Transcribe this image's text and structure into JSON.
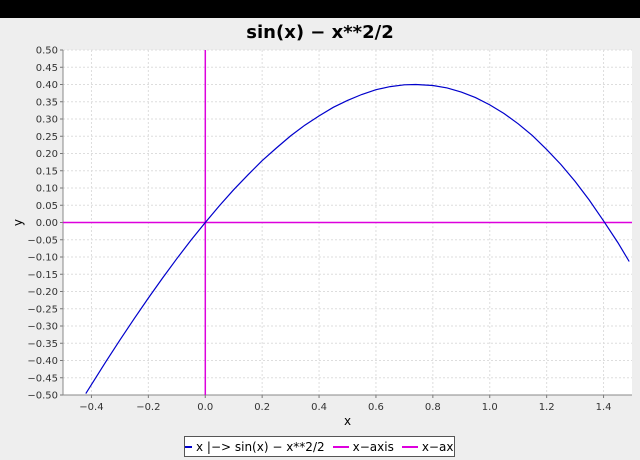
{
  "chart_data": {
    "type": "line",
    "title": "sin(x) − x**2/2",
    "xlabel": "x",
    "ylabel": "y",
    "xlim": [
      -0.5,
      1.5
    ],
    "ylim": [
      -0.5,
      0.5
    ],
    "xticks": [
      -0.4,
      -0.2,
      0.0,
      0.2,
      0.4,
      0.6,
      0.8,
      1.0,
      1.2,
      1.4
    ],
    "xtick_labels": [
      "−0.4",
      "−0.2",
      "0.0",
      "0.2",
      "0.4",
      "0.6",
      "0.8",
      "1.0",
      "1.2",
      "1.4"
    ],
    "yticks": [
      0.5,
      0.45,
      0.4,
      0.35,
      0.3,
      0.25,
      0.2,
      0.15,
      0.1,
      0.05,
      0.0,
      -0.05,
      -0.1,
      -0.15,
      -0.2,
      -0.25,
      -0.3,
      -0.35,
      -0.4,
      -0.45,
      -0.5
    ],
    "ytick_labels": [
      "0.50",
      "0.45",
      "0.40",
      "0.35",
      "0.30",
      "0.25",
      "0.20",
      "0.15",
      "0.10",
      "0.05",
      "0.00",
      "−0.05",
      "−0.10",
      "−0.15",
      "−0.20",
      "−0.25",
      "−0.30",
      "−0.35",
      "−0.40",
      "−0.45",
      "−0.50"
    ],
    "grid": true,
    "legend_position": "bottom-center",
    "series": [
      {
        "name": "x |−> sin(x) − x**2/2",
        "color": "#0000cc",
        "x": [
          -0.42,
          -0.35,
          -0.3,
          -0.25,
          -0.2,
          -0.15,
          -0.1,
          -0.05,
          0.0,
          0.05,
          0.1,
          0.15,
          0.2,
          0.25,
          0.3,
          0.35,
          0.4,
          0.45,
          0.5,
          0.55,
          0.6,
          0.65,
          0.7,
          0.74,
          0.8,
          0.85,
          0.9,
          0.95,
          1.0,
          1.05,
          1.1,
          1.15,
          1.2,
          1.25,
          1.3,
          1.35,
          1.4,
          1.45,
          1.49
        ],
        "y": [
          -0.496,
          -0.404,
          -0.341,
          -0.279,
          -0.219,
          -0.161,
          -0.105,
          -0.051,
          0.0,
          0.049,
          0.095,
          0.138,
          0.179,
          0.216,
          0.251,
          0.282,
          0.309,
          0.334,
          0.354,
          0.371,
          0.385,
          0.394,
          0.399,
          0.4,
          0.397,
          0.39,
          0.378,
          0.362,
          0.341,
          0.316,
          0.286,
          0.252,
          0.212,
          0.168,
          0.119,
          0.065,
          0.005,
          -0.058,
          -0.113
        ]
      },
      {
        "name": "x−axis",
        "color": "#dd00dd",
        "x": [
          -0.5,
          1.5
        ],
        "y": [
          0,
          0
        ]
      },
      {
        "name": "x−axis",
        "color": "#dd00dd",
        "x": [
          0,
          0
        ],
        "y": [
          -0.5,
          0.5
        ]
      }
    ]
  }
}
